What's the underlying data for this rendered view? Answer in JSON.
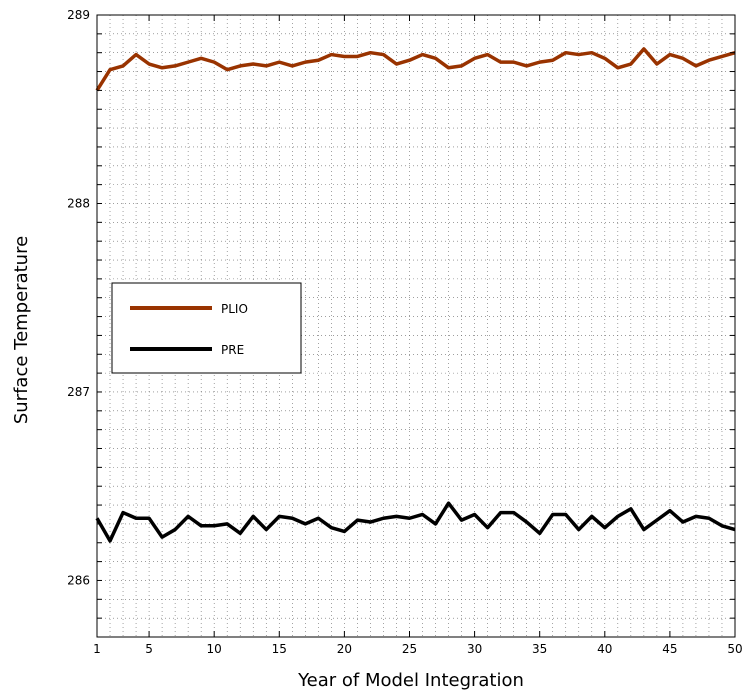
{
  "chart_data": {
    "type": "line",
    "xlabel": "Year of Model Integration",
    "ylabel": "Surface Temperature",
    "xlim": [
      1,
      50
    ],
    "ylim": [
      285.7,
      289
    ],
    "x_ticks": [
      "1",
      "5",
      "10",
      "15",
      "20",
      "25",
      "30",
      "35",
      "40",
      "45",
      "50"
    ],
    "y_ticks": [
      "286",
      "287",
      "288",
      "289"
    ],
    "grid": "dotted",
    "legend_position": "left-middle",
    "series": [
      {
        "name": "PLIO",
        "color": "#993300",
        "x": [
          1,
          2,
          3,
          4,
          5,
          6,
          7,
          8,
          9,
          10,
          11,
          12,
          13,
          14,
          15,
          16,
          17,
          18,
          19,
          20,
          21,
          22,
          23,
          24,
          25,
          26,
          27,
          28,
          29,
          30,
          31,
          32,
          33,
          34,
          35,
          36,
          37,
          38,
          39,
          40,
          41,
          42,
          43,
          44,
          45,
          46,
          47,
          48,
          49,
          50
        ],
        "values": [
          288.6,
          288.71,
          288.73,
          288.79,
          288.74,
          288.72,
          288.73,
          288.75,
          288.77,
          288.75,
          288.71,
          288.73,
          288.74,
          288.73,
          288.75,
          288.73,
          288.75,
          288.76,
          288.79,
          288.78,
          288.78,
          288.8,
          288.79,
          288.74,
          288.76,
          288.79,
          288.77,
          288.72,
          288.73,
          288.77,
          288.79,
          288.75,
          288.75,
          288.73,
          288.75,
          288.76,
          288.8,
          288.79,
          288.8,
          288.77,
          288.72,
          288.74,
          288.82,
          288.74,
          288.79,
          288.77,
          288.73,
          288.76,
          288.78,
          288.8
        ]
      },
      {
        "name": "PRE",
        "color": "#000000",
        "x": [
          1,
          2,
          3,
          4,
          5,
          6,
          7,
          8,
          9,
          10,
          11,
          12,
          13,
          14,
          15,
          16,
          17,
          18,
          19,
          20,
          21,
          22,
          23,
          24,
          25,
          26,
          27,
          28,
          29,
          30,
          31,
          32,
          33,
          34,
          35,
          36,
          37,
          38,
          39,
          40,
          41,
          42,
          43,
          44,
          45,
          46,
          47,
          48,
          49,
          50
        ],
        "values": [
          286.33,
          286.21,
          286.36,
          286.33,
          286.33,
          286.23,
          286.27,
          286.34,
          286.29,
          286.29,
          286.3,
          286.25,
          286.34,
          286.27,
          286.34,
          286.33,
          286.3,
          286.33,
          286.28,
          286.26,
          286.32,
          286.31,
          286.33,
          286.34,
          286.33,
          286.35,
          286.3,
          286.41,
          286.32,
          286.35,
          286.28,
          286.36,
          286.36,
          286.31,
          286.25,
          286.35,
          286.35,
          286.27,
          286.34,
          286.28,
          286.34,
          286.38,
          286.27,
          286.32,
          286.37,
          286.31,
          286.34,
          286.33,
          286.29,
          286.27
        ]
      }
    ]
  }
}
